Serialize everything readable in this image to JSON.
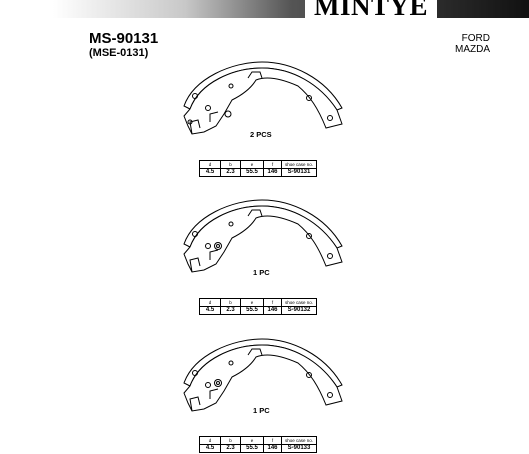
{
  "brand": "MINTYE",
  "part_number": "MS-90131",
  "alt_number": "(MSE-0131)",
  "makes": [
    "FORD",
    "MAZDA"
  ],
  "spec_headers": [
    "d",
    "b",
    "e",
    "f",
    "shoe case no."
  ],
  "sections": [
    {
      "qty": "2 PCS",
      "specs": [
        "4.5",
        "2.3",
        "55.5",
        "146",
        "S-90131"
      ]
    },
    {
      "qty": "1 PC",
      "specs": [
        "4.5",
        "2.3",
        "55.5",
        "146",
        "S-90132"
      ]
    },
    {
      "qty": "1 PC",
      "specs": [
        "4.5",
        "2.3",
        "55.5",
        "146",
        "S-90133"
      ]
    }
  ]
}
